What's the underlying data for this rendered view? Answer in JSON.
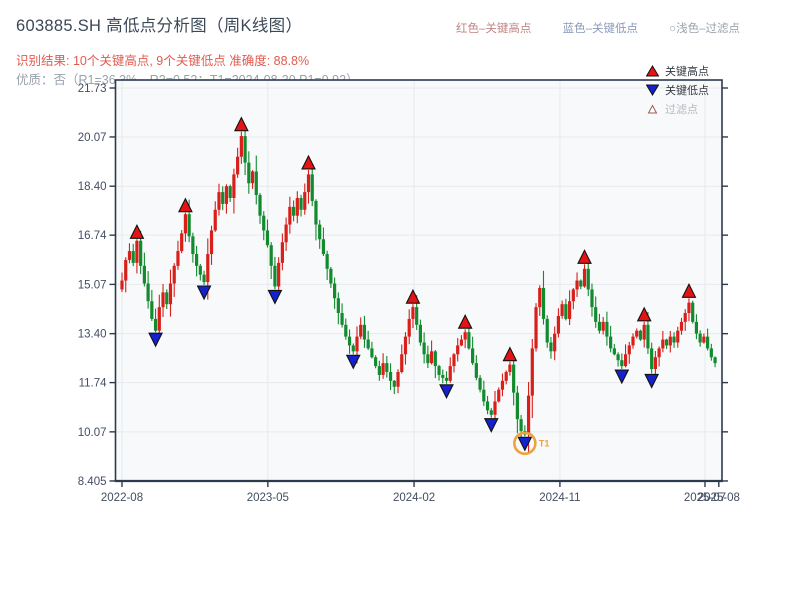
{
  "header": {
    "title": "603885.SH 高低点分析图（周K线图）",
    "result_line": "识别结果: 10个关键高点, 9个关键低点  准确度: 88.8%",
    "quality_line": "优质：否（R1=36.3%，R2=0.52；T1=2024-08-30 P1=9.92）",
    "legend_hint": [
      {
        "label": "红色–关键高点",
        "color": "#c28484"
      },
      {
        "label": "蓝色–关键低点",
        "color": "#8a9abc"
      },
      {
        "label": "○浅色–过滤点",
        "color": "#9aa3ad"
      }
    ]
  },
  "chart_data": {
    "type": "candlestick",
    "timeframe": "weekly",
    "title": "603885.SH 高低点分析图（周K线图）",
    "ylim": [
      8.405,
      22.0
    ],
    "grid": true,
    "legend_position": "upper right",
    "y_ticks": [
      {
        "label": "21.73",
        "value": 21.73
      },
      {
        "label": "20.07",
        "value": 20.07
      },
      {
        "label": "18.40",
        "value": 18.4
      },
      {
        "label": "16.74",
        "value": 16.74
      },
      {
        "label": "15.07",
        "value": 15.07
      },
      {
        "label": "13.40",
        "value": 13.4
      },
      {
        "label": "11.74",
        "value": 11.74
      },
      {
        "label": "10.07",
        "value": 10.07
      },
      {
        "label": "8.405",
        "value": 8.405
      }
    ],
    "x_ticks": [
      {
        "label": "2022-08",
        "week": 0,
        "grid": true
      },
      {
        "label": "2023-05",
        "week": 39.1,
        "grid": true
      },
      {
        "label": "2024-02",
        "week": 78.3,
        "grid": true
      },
      {
        "label": "2024-11",
        "week": 117.4,
        "grid": true
      },
      {
        "label": "2025-07",
        "week": 156.3,
        "grid": true
      },
      {
        "label": "2025-08",
        "week": 160,
        "grid": false
      }
    ],
    "first_open": 14.9,
    "closes": [
      15.2,
      15.9,
      16.2,
      15.8,
      16.55,
      15.7,
      15.1,
      14.5,
      13.9,
      13.5,
      14.3,
      14.8,
      14.4,
      15.1,
      15.7,
      16.2,
      16.8,
      17.45,
      16.7,
      16.1,
      15.7,
      15.4,
      15.15,
      16.1,
      16.9,
      17.6,
      18.2,
      17.8,
      18.4,
      18.0,
      18.8,
      19.4,
      20.1,
      19.2,
      18.5,
      18.9,
      18.1,
      17.4,
      16.9,
      16.4,
      15.7,
      15.0,
      15.8,
      16.5,
      17.1,
      17.7,
      17.4,
      18.0,
      17.6,
      18.2,
      18.8,
      17.9,
      17.1,
      16.6,
      16.1,
      15.6,
      15.1,
      14.6,
      14.1,
      13.7,
      13.3,
      13.0,
      12.8,
      13.3,
      13.7,
      13.2,
      12.9,
      12.6,
      12.3,
      12.0,
      12.4,
      12.1,
      11.8,
      11.6,
      12.1,
      12.7,
      13.3,
      13.9,
      14.3,
      13.7,
      13.1,
      12.7,
      12.4,
      12.8,
      12.3,
      12.0,
      11.9,
      11.8,
      12.3,
      12.7,
      13.0,
      13.2,
      13.45,
      12.9,
      12.4,
      11.9,
      11.5,
      11.1,
      10.8,
      10.65,
      11.1,
      11.5,
      11.8,
      12.1,
      12.35,
      11.4,
      10.5,
      10.1,
      9.98,
      11.3,
      12.9,
      14.3,
      14.95,
      13.9,
      13.1,
      12.8,
      13.4,
      14.0,
      14.4,
      13.9,
      14.5,
      14.9,
      15.2,
      15.0,
      15.6,
      14.9,
      14.3,
      13.8,
      13.5,
      13.8,
      13.3,
      12.9,
      12.7,
      12.5,
      12.3,
      12.7,
      13.0,
      13.3,
      13.5,
      13.2,
      13.7,
      12.9,
      12.2,
      12.6,
      12.9,
      13.2,
      13.0,
      13.3,
      13.1,
      13.5,
      13.8,
      14.1,
      14.45,
      13.8,
      13.4,
      13.1,
      13.3,
      12.9,
      12.6,
      12.4
    ],
    "key_highs": [
      {
        "week": 4,
        "price": 16.6
      },
      {
        "week": 17,
        "price": 17.5
      },
      {
        "week": 32,
        "price": 20.25
      },
      {
        "week": 50,
        "price": 18.95
      },
      {
        "week": 78,
        "price": 14.4
      },
      {
        "week": 92,
        "price": 13.55
      },
      {
        "week": 104,
        "price": 12.45
      },
      {
        "week": 124,
        "price": 15.75
      },
      {
        "week": 140,
        "price": 13.8
      },
      {
        "week": 152,
        "price": 14.6
      }
    ],
    "key_lows": [
      {
        "week": 9,
        "price": 13.45
      },
      {
        "week": 22,
        "price": 15.05
      },
      {
        "week": 41,
        "price": 14.9
      },
      {
        "week": 62,
        "price": 12.7
      },
      {
        "week": 87,
        "price": 11.7
      },
      {
        "week": 99,
        "price": 10.55
      },
      {
        "week": 108,
        "price": 9.92
      },
      {
        "week": 134,
        "price": 12.2
      },
      {
        "week": 142,
        "price": 12.05
      }
    ],
    "filtered_point": {
      "week": 108,
      "price": 9.92,
      "label": "T1",
      "date": "2024-08-30",
      "p1": 9.92
    },
    "in_chart_legend": [
      {
        "label": "关键高点",
        "marker": "up-triangle",
        "color": "#e41414"
      },
      {
        "label": "关键低点",
        "marker": "down-triangle",
        "color": "#1522cc"
      },
      {
        "label": "过滤点",
        "marker": "open-triangle",
        "color": "#ffffff"
      }
    ],
    "colors": {
      "up": "#d81f1a",
      "down": "#128a2e",
      "key_high": "#e41414",
      "key_low": "#1522cc",
      "marker_edge": "#111111",
      "highlight_circle": "#eda33b",
      "grid": "#e7e9ec",
      "spine": "#2c3a4e",
      "tick_label": "#414e63",
      "plot_bg": "#f8f9fb"
    }
  }
}
